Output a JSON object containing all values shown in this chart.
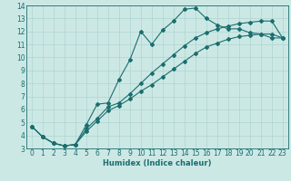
{
  "xlabel": "Humidex (Indice chaleur)",
  "xlim": [
    -0.5,
    23.5
  ],
  "ylim": [
    3,
    14
  ],
  "xticks": [
    0,
    1,
    2,
    3,
    4,
    5,
    6,
    7,
    8,
    9,
    10,
    11,
    12,
    13,
    14,
    15,
    16,
    17,
    18,
    19,
    20,
    21,
    22,
    23
  ],
  "yticks": [
    3,
    4,
    5,
    6,
    7,
    8,
    9,
    10,
    11,
    12,
    13,
    14
  ],
  "bg_color": "#cce8e5",
  "grid_color": "#afd4d0",
  "line_color": "#1a6e6e",
  "line1_x": [
    0,
    1,
    2,
    3,
    4,
    5,
    6,
    7,
    8,
    9,
    10,
    11,
    12,
    13,
    14,
    15,
    16,
    17,
    18,
    19,
    20,
    21,
    22,
    23
  ],
  "line1_y": [
    4.7,
    3.9,
    3.4,
    3.2,
    3.3,
    4.8,
    6.4,
    6.5,
    8.3,
    9.8,
    12.0,
    11.0,
    12.1,
    12.8,
    13.7,
    13.8,
    13.0,
    12.5,
    12.2,
    12.2,
    11.9,
    11.8,
    11.5,
    11.5
  ],
  "line2_x": [
    0,
    1,
    2,
    3,
    4,
    5,
    6,
    7,
    8,
    9,
    10,
    11,
    12,
    13,
    14,
    15,
    16,
    17,
    18,
    19,
    20,
    21,
    22,
    23
  ],
  "line2_y": [
    4.7,
    3.9,
    3.4,
    3.2,
    3.3,
    4.5,
    5.3,
    6.2,
    6.5,
    7.2,
    8.0,
    8.8,
    9.5,
    10.2,
    10.9,
    11.5,
    11.9,
    12.2,
    12.4,
    12.6,
    12.7,
    12.8,
    12.8,
    11.5
  ],
  "line3_x": [
    0,
    1,
    2,
    3,
    4,
    5,
    6,
    7,
    8,
    9,
    10,
    11,
    12,
    13,
    14,
    15,
    16,
    17,
    18,
    19,
    20,
    21,
    22,
    23
  ],
  "line3_y": [
    4.7,
    3.9,
    3.4,
    3.2,
    3.3,
    4.3,
    5.1,
    5.9,
    6.3,
    6.8,
    7.4,
    7.9,
    8.5,
    9.1,
    9.7,
    10.3,
    10.8,
    11.1,
    11.4,
    11.6,
    11.7,
    11.8,
    11.8,
    11.5
  ],
  "tick_fontsize": 5.5,
  "xlabel_fontsize": 6.0,
  "marker_size": 2.0,
  "line_width": 0.8
}
